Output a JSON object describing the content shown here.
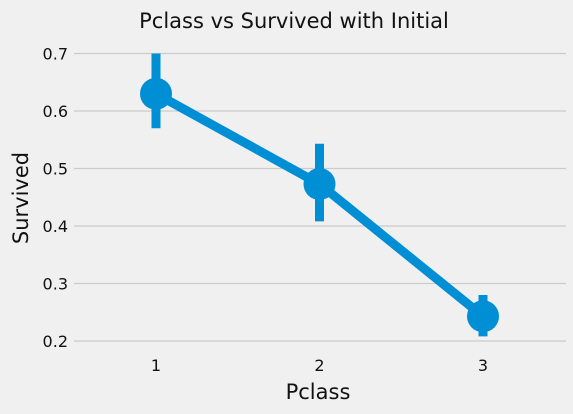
{
  "chart_data": {
    "type": "line",
    "title": "Pclass vs Survived with Initial",
    "xlabel": "Pclass",
    "ylabel": "Survived",
    "categories": [
      "1",
      "2",
      "3"
    ],
    "series": [
      {
        "values": [
          0.63,
          0.473,
          0.243
        ],
        "ci_low": [
          0.57,
          0.408,
          0.208
        ],
        "ci_high": [
          0.7,
          0.543,
          0.28
        ]
      }
    ],
    "ylim": [
      0.18,
      0.7
    ],
    "yticks": [
      "0.2",
      "0.3",
      "0.4",
      "0.5",
      "0.6",
      "0.7"
    ],
    "grid": true,
    "colors": {
      "series": "#008fd5",
      "grid": "#cbcbcb",
      "background": "#f0f0f0"
    }
  }
}
